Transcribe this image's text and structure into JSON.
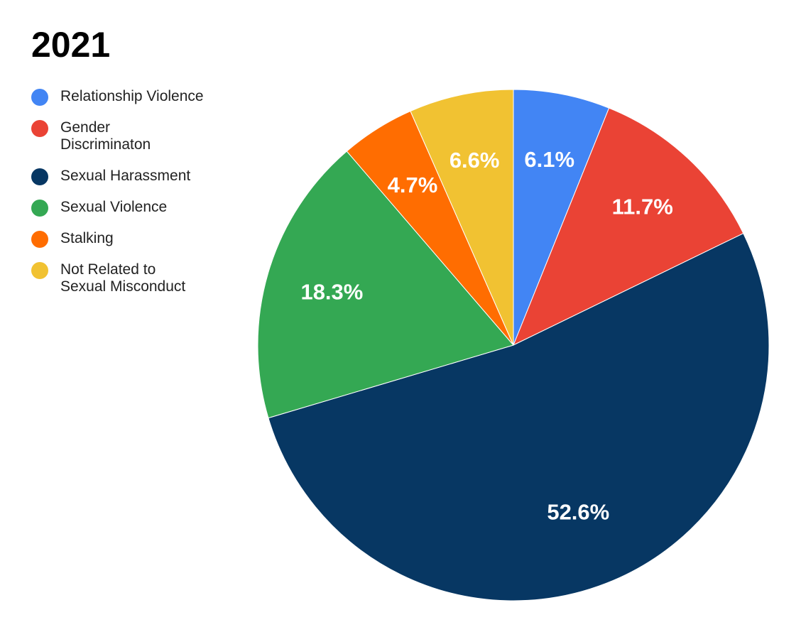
{
  "chart_data": {
    "type": "pie",
    "title": "2021",
    "legend_position": "left",
    "slices": [
      {
        "label": "Relationship Violence",
        "value": 6.1,
        "display": "6.1%",
        "color": "#4285F4"
      },
      {
        "label": "Gender\nDiscriminaton",
        "value": 11.7,
        "display": "11.7%",
        "color": "#EA4335"
      },
      {
        "label": "Sexual Harassment",
        "value": 52.6,
        "display": "52.6%",
        "color": "#073763"
      },
      {
        "label": "Sexual Violence",
        "value": 18.3,
        "display": "18.3%",
        "color": "#34A853"
      },
      {
        "label": "Stalking",
        "value": 4.7,
        "display": "4.7%",
        "color": "#FF6D01"
      },
      {
        "label": "Not Related to\nSexual Misconduct",
        "value": 6.6,
        "display": "6.6%",
        "color": "#F1C232"
      }
    ]
  }
}
